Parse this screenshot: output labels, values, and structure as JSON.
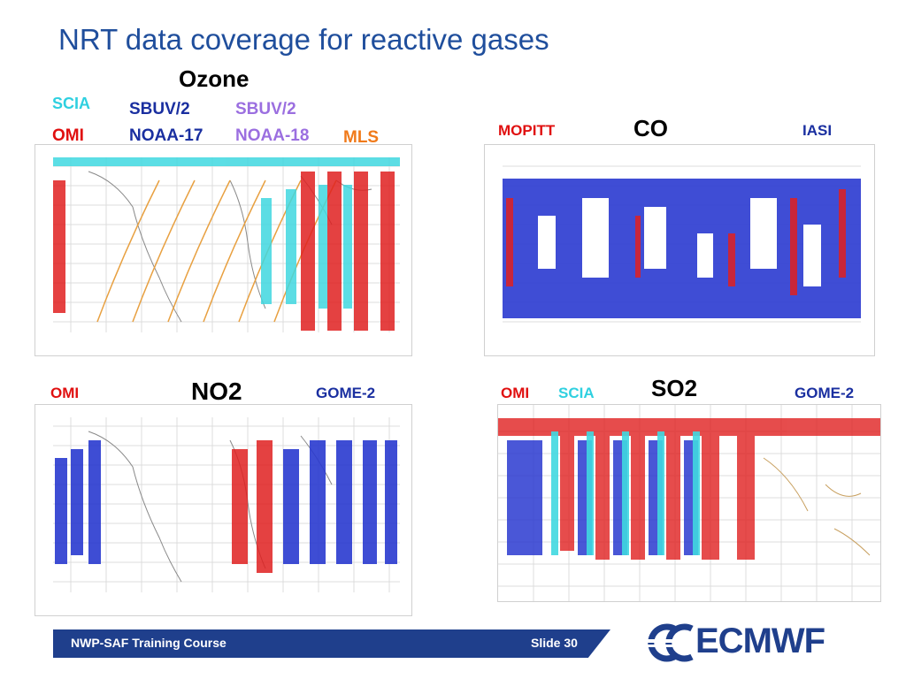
{
  "slide": {
    "title": "NRT data coverage for reactive gases",
    "footer": "NWP-SAF Training Course",
    "slide_number": "Slide 30",
    "logo": "ECMWF"
  },
  "panels": {
    "ozone": {
      "gas": "Ozone",
      "labels": [
        {
          "text": "SCIA",
          "color": "#2fd0e0"
        },
        {
          "text": "OMI",
          "color": "#e01010"
        },
        {
          "text": "SBUV/2",
          "color": "#1a2fa0"
        },
        {
          "text": "NOAA-17",
          "color": "#1a2fa0"
        },
        {
          "text": "SBUV/2",
          "color": "#9b6fe0"
        },
        {
          "text": "NOAA-18",
          "color": "#9b6fe0"
        },
        {
          "text": "MLS",
          "color": "#f07a1a"
        }
      ]
    },
    "co": {
      "gas": "CO",
      "labels": [
        {
          "text": "MOPITT",
          "color": "#e01010"
        },
        {
          "text": "IASI",
          "color": "#1a2fa0"
        }
      ]
    },
    "no2": {
      "gas": "NO2",
      "labels": [
        {
          "text": "OMI",
          "color": "#e01010"
        },
        {
          "text": "GOME-2",
          "color": "#1a2fa0"
        }
      ]
    },
    "so2": {
      "gas": "SO2",
      "labels": [
        {
          "text": "OMI",
          "color": "#e01010"
        },
        {
          "text": "SCIA",
          "color": "#2fd0e0"
        },
        {
          "text": "GOME-2",
          "color": "#1a2fa0"
        }
      ]
    }
  },
  "colors": {
    "title": "#1f4e9c",
    "footer_bar": "#1f3f8c",
    "logo": "#1f3f8c"
  }
}
